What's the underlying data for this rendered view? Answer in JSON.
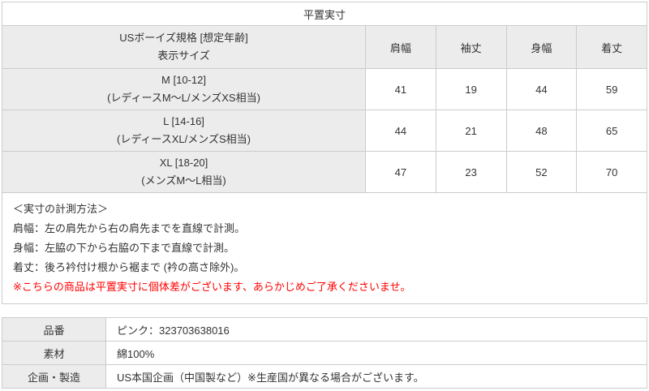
{
  "size_table": {
    "title": "平置実寸",
    "label_header_line1": "USボーイズ規格 [想定年齢]",
    "label_header_line2": "表示サイズ",
    "columns": [
      "肩幅",
      "袖丈",
      "身幅",
      "着丈"
    ],
    "rows": [
      {
        "label_line1": "M [10-12]",
        "label_line2": "(レディースM～L/メンズXS相当)",
        "values": [
          41,
          19,
          44,
          59
        ]
      },
      {
        "label_line1": "L [14-16]",
        "label_line2": "(レディースXL/メンズS相当)",
        "values": [
          44,
          21,
          48,
          65
        ]
      },
      {
        "label_line1": "XL [18-20]",
        "label_line2": "(メンズM～L相当)",
        "values": [
          47,
          23,
          52,
          70
        ]
      }
    ]
  },
  "notes": {
    "heading": "＜実寸の計測方法＞",
    "lines": [
      "肩幅：左の肩先から右の肩先までを直線で計測。",
      "身幅：左脇の下から右脇の下まで直線で計測。",
      "着丈：後ろ衿付け根から裾まで (衿の高さ除外)。"
    ],
    "warning": "※こちらの商品は平置実寸に個体差がございます、あらかじめご了承くださいませ。"
  },
  "product_table": {
    "rows": [
      {
        "label": "品番",
        "value": "ピンク：323703638016"
      },
      {
        "label": "素材",
        "value": "綿100%"
      },
      {
        "label": "企画・製造",
        "value": "US本国企画（中国製など）※生産国が異なる場合がございます。"
      }
    ]
  },
  "colors": {
    "cell_gray": "#ececec",
    "border": "#cccccc",
    "text": "#333333",
    "warning_red": "#ff0000"
  }
}
